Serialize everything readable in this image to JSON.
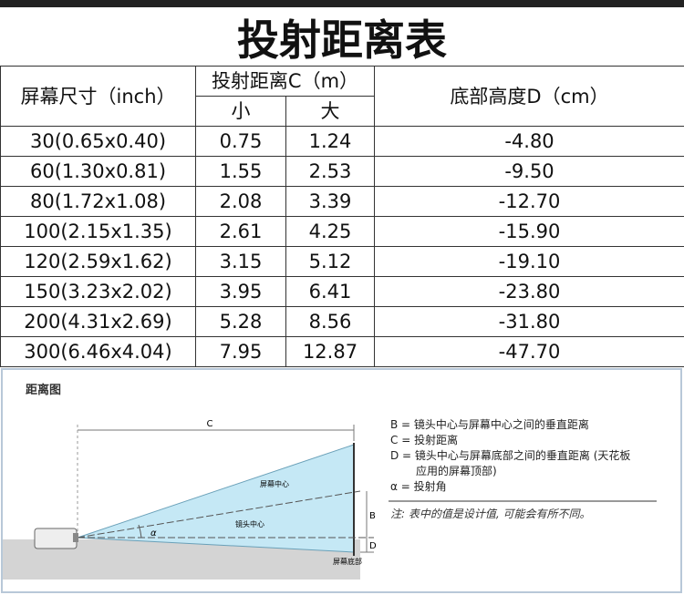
{
  "title": "投射距离表",
  "table": {
    "headers": {
      "size": "屏幕尺寸（inch）",
      "distance": "投射距离C（m）",
      "min": "小",
      "max": "大",
      "height": "底部高度D（cm）"
    },
    "rows": [
      [
        "30(0.65x0.40)",
        "0.75",
        "1.24",
        "-4.80"
      ],
      [
        "60(1.30x0.81)",
        "1.55",
        "2.53",
        "-9.50"
      ],
      [
        "80(1.72x1.08)",
        "2.08",
        "3.39",
        "-12.70"
      ],
      [
        "100(2.15x1.35)",
        "2.61",
        "4.25",
        "-15.90"
      ],
      [
        "120(2.59x1.62)",
        "3.15",
        "5.12",
        "-19.10"
      ],
      [
        "150(3.23x2.02)",
        "3.95",
        "6.41",
        "-23.80"
      ],
      [
        "200(4.31x2.69)",
        "5.28",
        "8.56",
        "-31.80"
      ],
      [
        "300(6.46x4.04)",
        "7.95",
        "12.87",
        "-47.70"
      ]
    ]
  },
  "diagram": {
    "title": "距离图",
    "c": "C",
    "screen_center": "屏幕中心",
    "lens_center": "镜头中心",
    "alpha": "α",
    "b": "B",
    "d": "D",
    "screen_bottom": "屏幕底部",
    "legend": [
      "B = 镜头中心与屏幕中心之间的垂直距离",
      "C = 投射距离",
      "D = 镜头中心与屏幕底部之间的垂直距离 (天花板",
      "应用的屏幕顶部)",
      "α = 投射角"
    ],
    "note": "注: 表中的值是设计值, 可能会有所不同。"
  }
}
